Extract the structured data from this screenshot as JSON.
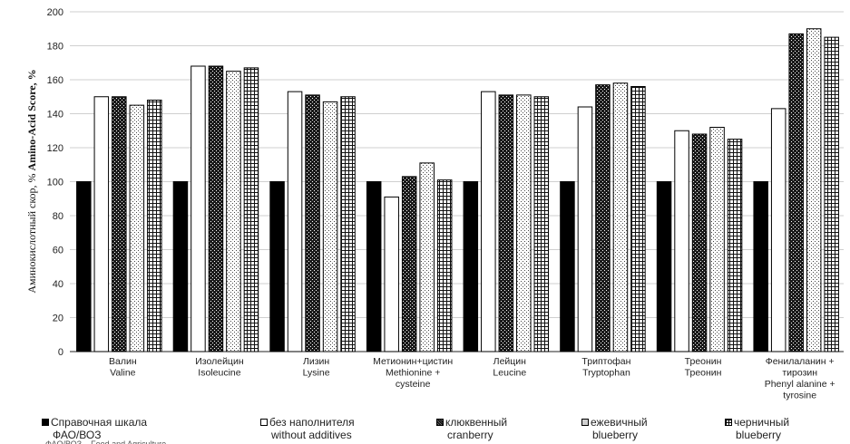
{
  "chart_data": {
    "type": "bar",
    "ylabel_ru": "Аминокислотный скор, %",
    "ylabel_en": "Amino-Acid Score, %",
    "ylim": [
      0,
      200
    ],
    "yticks": [
      0,
      20,
      40,
      60,
      80,
      100,
      120,
      140,
      160,
      180,
      200
    ],
    "grid": true,
    "categories": [
      [
        "Валин",
        "Valine"
      ],
      [
        "Изолейцин",
        "Isoleucine"
      ],
      [
        "Лизин",
        "Lysine"
      ],
      [
        "Метионин+цистин",
        "Methionine +",
        "cysteine"
      ],
      [
        "Лейцин",
        "Leucine"
      ],
      [
        "Триптофан",
        "Tryptophan"
      ],
      [
        "Треонин",
        "Треонин"
      ],
      [
        "Фенилаланин +",
        "тирозин",
        "Phenyl alanine +",
        "tyrosine"
      ]
    ],
    "series": [
      {
        "name": [
          "Справочная шкала",
          "ФАО/ВОЗ"
        ],
        "pattern": "solid",
        "values": [
          100,
          100,
          100,
          100,
          100,
          100,
          100,
          100
        ]
      },
      {
        "name": [
          "без наполнителя",
          "without additives"
        ],
        "pattern": "white",
        "values": [
          150,
          168,
          153,
          91,
          153,
          144,
          130,
          143
        ]
      },
      {
        "name": [
          "клюквенный",
          "cranberry"
        ],
        "pattern": "dense",
        "values": [
          150,
          168,
          151,
          103,
          151,
          157,
          128,
          187
        ]
      },
      {
        "name": [
          "ежевичный",
          "blueberry"
        ],
        "pattern": "dots",
        "values": [
          145,
          165,
          147,
          111,
          151,
          158,
          132,
          190
        ]
      },
      {
        "name": [
          "черничный",
          "blueberry"
        ],
        "pattern": "grid",
        "values": [
          148,
          167,
          150,
          101,
          150,
          156,
          125,
          185
        ]
      }
    ],
    "legend": "bottom"
  },
  "footer_fragment": "ФАО/ВОЗ – Food and Agriculture"
}
